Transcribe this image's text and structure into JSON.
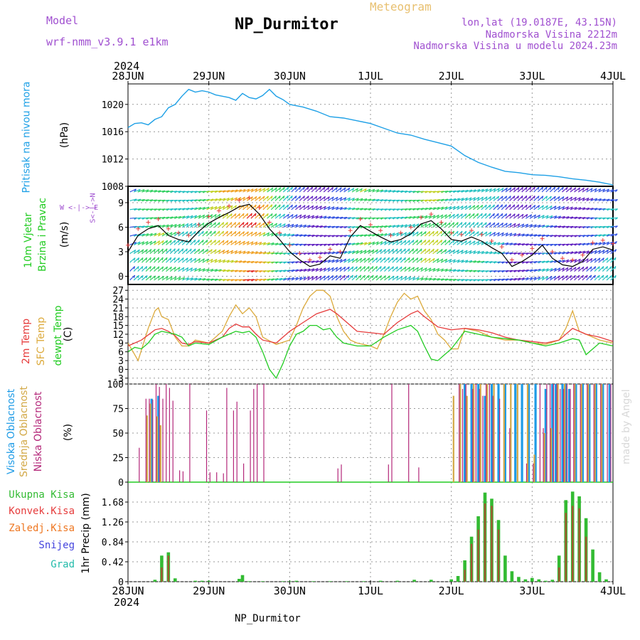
{
  "header": {
    "model_label": "Model",
    "model_name": "wrf-nmm_v3.9.1  e1km",
    "title": "NP_Durmitor",
    "product": "Meteogram",
    "coords": "lon,lat (19.0187E, 43.15N)",
    "elevation": "Nadmorska Visina 2212m",
    "model_elevation": "Nadmorska Visina u modelu 2024.23m",
    "year": "2024",
    "footer_station": "NP_Durmitor",
    "credit": "made by Angel"
  },
  "colors": {
    "pressure": "#1ea0e6",
    "temp2m": "#e63c3c",
    "sfctemp": "#dcaa3c",
    "dewpt": "#22cc22",
    "cloud_high": "#1e9be6",
    "cloud_mid": "#d2a846",
    "cloud_low": "#b4287a",
    "precip_total": "#33bb33",
    "precip_conv": "#cc3333",
    "precip_frozen": "#ee7722",
    "snow": "#4444dd",
    "hail": "#22bbaa"
  },
  "time_axis": {
    "labels": [
      "28JUN",
      "29JUN",
      "30JUN",
      "1JUL",
      "2JUL",
      "3JUL",
      "4JUL"
    ],
    "range_hours": [
      0,
      144
    ]
  },
  "panels": {
    "pressure": {
      "title": "Pritisak na nivou mora",
      "unit": "(hPa)"
    },
    "wind": {
      "title1": "10m Vjetar",
      "title2": "Brzina i Pravac",
      "unit": "(m/s)",
      "compass": "W <-|-> E",
      "compass_ns": "S<-|->N"
    },
    "temp": {
      "title1": "2m Temp",
      "title2": "SFC Temp",
      "title3": "dewpt Temp",
      "unit": "(C)"
    },
    "cloud": {
      "title1": "Visoka Oblacnost",
      "title2": "Srednja Oblacnost",
      "title3": "Niska Oblacnost",
      "unit": "(%)"
    },
    "precip": {
      "title": "1hr Precip (mm)",
      "legend": [
        "Ukupna Kisa",
        "Konvek.Kisa",
        "Zaledj.Kisa",
        "Snijeg",
        "Grad"
      ]
    }
  },
  "chart_data": [
    {
      "type": "line",
      "panel": "pressure",
      "x_unit": "hours since 28JUN 00",
      "ylim": [
        1008,
        1023
      ],
      "yticks": [
        1008,
        1012,
        1016,
        1020
      ],
      "grid": true,
      "series": [
        {
          "values_x": [
            0,
            2,
            4,
            6,
            8,
            10,
            12,
            14,
            16,
            18,
            20,
            22,
            24,
            26,
            28,
            30,
            32,
            34,
            36,
            38,
            40,
            42,
            44,
            46,
            48,
            52,
            56,
            60,
            64,
            68,
            72,
            76,
            80,
            84,
            88,
            92,
            96,
            100,
            104,
            108,
            112,
            116,
            120,
            124,
            128,
            132,
            136,
            140,
            144
          ],
          "values": [
            1016.6,
            1017.2,
            1017.3,
            1017.0,
            1017.8,
            1018.2,
            1019.5,
            1020.0,
            1021.2,
            1022.2,
            1021.8,
            1022.0,
            1021.8,
            1021.4,
            1021.2,
            1021.0,
            1020.6,
            1021.6,
            1021.0,
            1020.8,
            1021.3,
            1022.2,
            1021.2,
            1020.7,
            1020.0,
            1019.6,
            1019.0,
            1018.2,
            1018.0,
            1017.6,
            1017.2,
            1016.5,
            1015.8,
            1015.5,
            1014.9,
            1014.4,
            1013.9,
            1012.5,
            1011.5,
            1010.8,
            1010.2,
            1010.0,
            1009.7,
            1009.6,
            1009.4,
            1009.1,
            1008.9,
            1008.6,
            1008.2
          ]
        }
      ]
    },
    {
      "type": "line",
      "panel": "wind",
      "ylim": [
        -1,
        11
      ],
      "yticks": [
        0,
        3,
        6,
        9
      ],
      "grid": true,
      "series": [
        {
          "name": "speed",
          "values_x": [
            0,
            3,
            6,
            9,
            12,
            15,
            18,
            21,
            24,
            27,
            30,
            33,
            36,
            39,
            42,
            45,
            48,
            51,
            54,
            57,
            60,
            63,
            66,
            69,
            72,
            75,
            78,
            81,
            84,
            87,
            90,
            93,
            96,
            99,
            102,
            105,
            108,
            111,
            114,
            117,
            120,
            123,
            126,
            129,
            132,
            135,
            138,
            141,
            144
          ],
          "values": [
            3.0,
            5.0,
            5.8,
            6.2,
            5.0,
            4.5,
            4.2,
            5.5,
            6.5,
            7.2,
            7.8,
            8.5,
            8.8,
            7.6,
            5.8,
            4.5,
            3.0,
            2.0,
            1.2,
            1.5,
            2.5,
            2.2,
            4.8,
            6.2,
            5.5,
            4.8,
            4.2,
            4.5,
            5.2,
            6.4,
            6.8,
            5.8,
            4.5,
            4.3,
            4.8,
            4.3,
            3.5,
            2.8,
            1.2,
            1.8,
            2.6,
            3.8,
            2.2,
            1.4,
            1.2,
            1.8,
            3.3,
            3.6,
            3.2
          ]
        }
      ]
    },
    {
      "type": "line",
      "panel": "temp",
      "ylim": [
        -5,
        29
      ],
      "yticks": [
        -3,
        0,
        3,
        6,
        9,
        12,
        15,
        18,
        21,
        24,
        27
      ],
      "grid": true,
      "series": [
        {
          "name": "2m",
          "values_x": [
            0,
            4,
            8,
            10,
            12,
            14,
            16,
            18,
            20,
            24,
            28,
            30,
            32,
            34,
            36,
            38,
            40,
            44,
            48,
            52,
            56,
            60,
            62,
            64,
            68,
            72,
            76,
            80,
            84,
            86,
            88,
            92,
            96,
            100,
            104,
            108,
            112,
            116,
            120,
            124,
            128,
            132,
            134,
            136,
            140,
            144
          ],
          "values": [
            8.0,
            10.0,
            13.5,
            14.0,
            13.0,
            11.5,
            9.0,
            8.5,
            9.5,
            9.0,
            11.0,
            14.0,
            15.5,
            14.5,
            14.5,
            12.0,
            10.0,
            9.0,
            13.0,
            16.0,
            19.0,
            20.5,
            19.0,
            17.0,
            13.0,
            12.5,
            12.0,
            16.0,
            19.0,
            20.0,
            18.0,
            14.5,
            13.5,
            14.0,
            13.5,
            12.5,
            11.0,
            10.0,
            9.5,
            9.0,
            10.0,
            14.0,
            13.0,
            12.0,
            11.0,
            9.5
          ]
        },
        {
          "name": "sfc",
          "values_x": [
            0,
            2,
            3,
            6,
            8,
            9,
            10,
            12,
            14,
            16,
            18,
            20,
            24,
            28,
            30,
            32,
            34,
            36,
            38,
            40,
            44,
            48,
            50,
            52,
            54,
            56,
            58,
            60,
            62,
            64,
            66,
            68,
            72,
            74,
            76,
            78,
            80,
            82,
            84,
            86,
            88,
            90,
            92,
            94,
            96,
            98,
            100,
            104,
            108,
            112,
            116,
            120,
            124,
            128,
            130,
            132,
            134,
            136,
            140,
            144
          ],
          "values": [
            9.0,
            5.0,
            3.0,
            14.0,
            20.0,
            21.0,
            18.0,
            17.0,
            11.0,
            8.0,
            8.0,
            10.0,
            9.0,
            13.0,
            18.0,
            22.0,
            19.0,
            21.0,
            18.0,
            11.0,
            8.5,
            10.0,
            15.0,
            21.0,
            25.0,
            27.0,
            27.0,
            25.0,
            18.0,
            13.0,
            10.0,
            9.0,
            8.0,
            7.0,
            12.0,
            18.0,
            23.0,
            26.0,
            24.0,
            25.0,
            20.0,
            17.0,
            12.0,
            10.0,
            7.0,
            7.0,
            14.0,
            13.0,
            11.0,
            10.0,
            10.0,
            9.0,
            8.5,
            10.0,
            14.0,
            20.0,
            13.0,
            12.0,
            10.0,
            9.0
          ]
        },
        {
          "name": "dewpt",
          "values_x": [
            0,
            2,
            4,
            6,
            8,
            10,
            12,
            14,
            16,
            18,
            20,
            24,
            28,
            30,
            32,
            34,
            36,
            38,
            40,
            42,
            44,
            46,
            48,
            50,
            52,
            54,
            56,
            58,
            60,
            62,
            64,
            68,
            72,
            76,
            80,
            84,
            86,
            88,
            90,
            92,
            94,
            96,
            100,
            104,
            108,
            112,
            116,
            120,
            124,
            128,
            132,
            134,
            136,
            140,
            144
          ],
          "values": [
            6.0,
            7.5,
            7.0,
            9.0,
            12.0,
            13.0,
            12.5,
            12.0,
            11.0,
            8.0,
            9.0,
            8.5,
            11.0,
            12.0,
            13.0,
            12.5,
            13.0,
            11.0,
            6.0,
            0.0,
            -3.0,
            2.0,
            8.0,
            12.0,
            13.0,
            15.0,
            15.0,
            13.5,
            14.0,
            11.0,
            9.0,
            8.0,
            8.0,
            11.0,
            13.5,
            15.0,
            13.0,
            8.0,
            3.5,
            3.0,
            5.0,
            7.0,
            13.0,
            12.0,
            11.0,
            10.5,
            10.0,
            9.0,
            8.0,
            9.0,
            10.5,
            10.0,
            5.0,
            9.0,
            8.0
          ]
        }
      ]
    },
    {
      "type": "bar",
      "panel": "cloud",
      "ylim": [
        0,
        100
      ],
      "yticks": [
        0,
        25,
        50,
        75,
        100
      ],
      "grid": true,
      "series": [
        {
          "name": "low",
          "values_x": [
            3,
            5,
            6,
            7,
            8,
            9,
            10,
            11,
            12,
            13,
            15,
            16,
            18,
            23,
            24,
            26,
            28,
            29,
            31,
            32,
            34,
            36,
            37,
            38,
            40,
            62,
            63,
            77,
            78,
            83,
            86,
            98,
            99,
            100,
            102,
            103,
            104,
            105,
            106,
            107,
            108,
            110,
            113,
            118,
            120,
            122,
            123,
            124,
            125,
            126,
            127,
            128,
            129,
            130,
            131,
            132,
            134,
            136,
            138,
            140,
            142,
            143
          ],
          "values": [
            35,
            85,
            85,
            84,
            100,
            97,
            85,
            100,
            96,
            83,
            12,
            11,
            100,
            73,
            10,
            10,
            9,
            96,
            73,
            82,
            19,
            73,
            95,
            100,
            100,
            14,
            18,
            18,
            100,
            100,
            15,
            100,
            95,
            100,
            95,
            100,
            95,
            88,
            100,
            100,
            88,
            85,
            55,
            19,
            19,
            100,
            55,
            100,
            100,
            100,
            100,
            95,
            95,
            100,
            95,
            100,
            100,
            100,
            100,
            100,
            100,
            100
          ]
        },
        {
          "name": "mid",
          "values_x": [
            6,
            7,
            9,
            10,
            97,
            99,
            101,
            103,
            105,
            107,
            109,
            112,
            114,
            116,
            119,
            121,
            124,
            126,
            128,
            130,
            133,
            135,
            137,
            139,
            141
          ],
          "values": [
            68,
            80,
            67,
            58,
            88,
            100,
            88,
            100,
            100,
            100,
            100,
            100,
            100,
            100,
            100,
            28,
            50,
            55,
            100,
            100,
            100,
            100,
            100,
            100,
            100
          ]
        },
        {
          "name": "high",
          "values_x": [
            7,
            9,
            100,
            102,
            104,
            106,
            108,
            110,
            112,
            115,
            117,
            119,
            121,
            124,
            126,
            127,
            129,
            130,
            131,
            133,
            135,
            137,
            139,
            141,
            143
          ],
          "values": [
            85,
            88,
            100,
            100,
            100,
            88,
            100,
            100,
            100,
            100,
            100,
            100,
            100,
            95,
            100,
            100,
            100,
            100,
            95,
            100,
            100,
            100,
            100,
            100,
            100
          ]
        }
      ]
    },
    {
      "type": "bar",
      "panel": "precip",
      "ylim": [
        0,
        2.1
      ],
      "yticks": [
        0,
        0.42,
        0.84,
        1.26,
        1.68
      ],
      "grid": true,
      "series": [
        {
          "name": "total",
          "values_x": [
            8,
            10,
            12,
            14,
            20,
            22,
            24,
            33,
            34,
            36,
            40,
            46,
            48,
            50,
            55,
            60,
            65,
            70,
            75,
            80,
            85,
            90,
            96,
            98,
            100,
            102,
            104,
            106,
            108,
            110,
            112,
            114,
            116,
            118,
            120,
            122,
            124,
            126,
            128,
            130,
            132,
            134,
            136,
            138,
            140,
            142
          ],
          "values": [
            0.04,
            0.55,
            0.62,
            0.07,
            0.02,
            0.02,
            0.02,
            0.06,
            0.14,
            0.01,
            0.01,
            0.01,
            0.01,
            0.02,
            0.01,
            0.01,
            0.01,
            0.01,
            0.02,
            0.02,
            0.04,
            0.04,
            0.05,
            0.12,
            0.45,
            0.95,
            1.38,
            1.88,
            1.75,
            1.3,
            0.55,
            0.22,
            0.1,
            0.05,
            0.08,
            0.05,
            0.02,
            0.04,
            0.55,
            1.72,
            1.9,
            1.8,
            1.34,
            0.68,
            0.2,
            0.05
          ]
        },
        {
          "name": "conv",
          "values_x": [
            10,
            12,
            100,
            102,
            104,
            106,
            108,
            110,
            128,
            130,
            132,
            134,
            136
          ],
          "values": [
            0.3,
            0.55,
            0.25,
            0.8,
            1.1,
            1.65,
            1.6,
            1.1,
            0.3,
            1.45,
            1.6,
            1.55,
            0.95
          ]
        }
      ]
    }
  ]
}
